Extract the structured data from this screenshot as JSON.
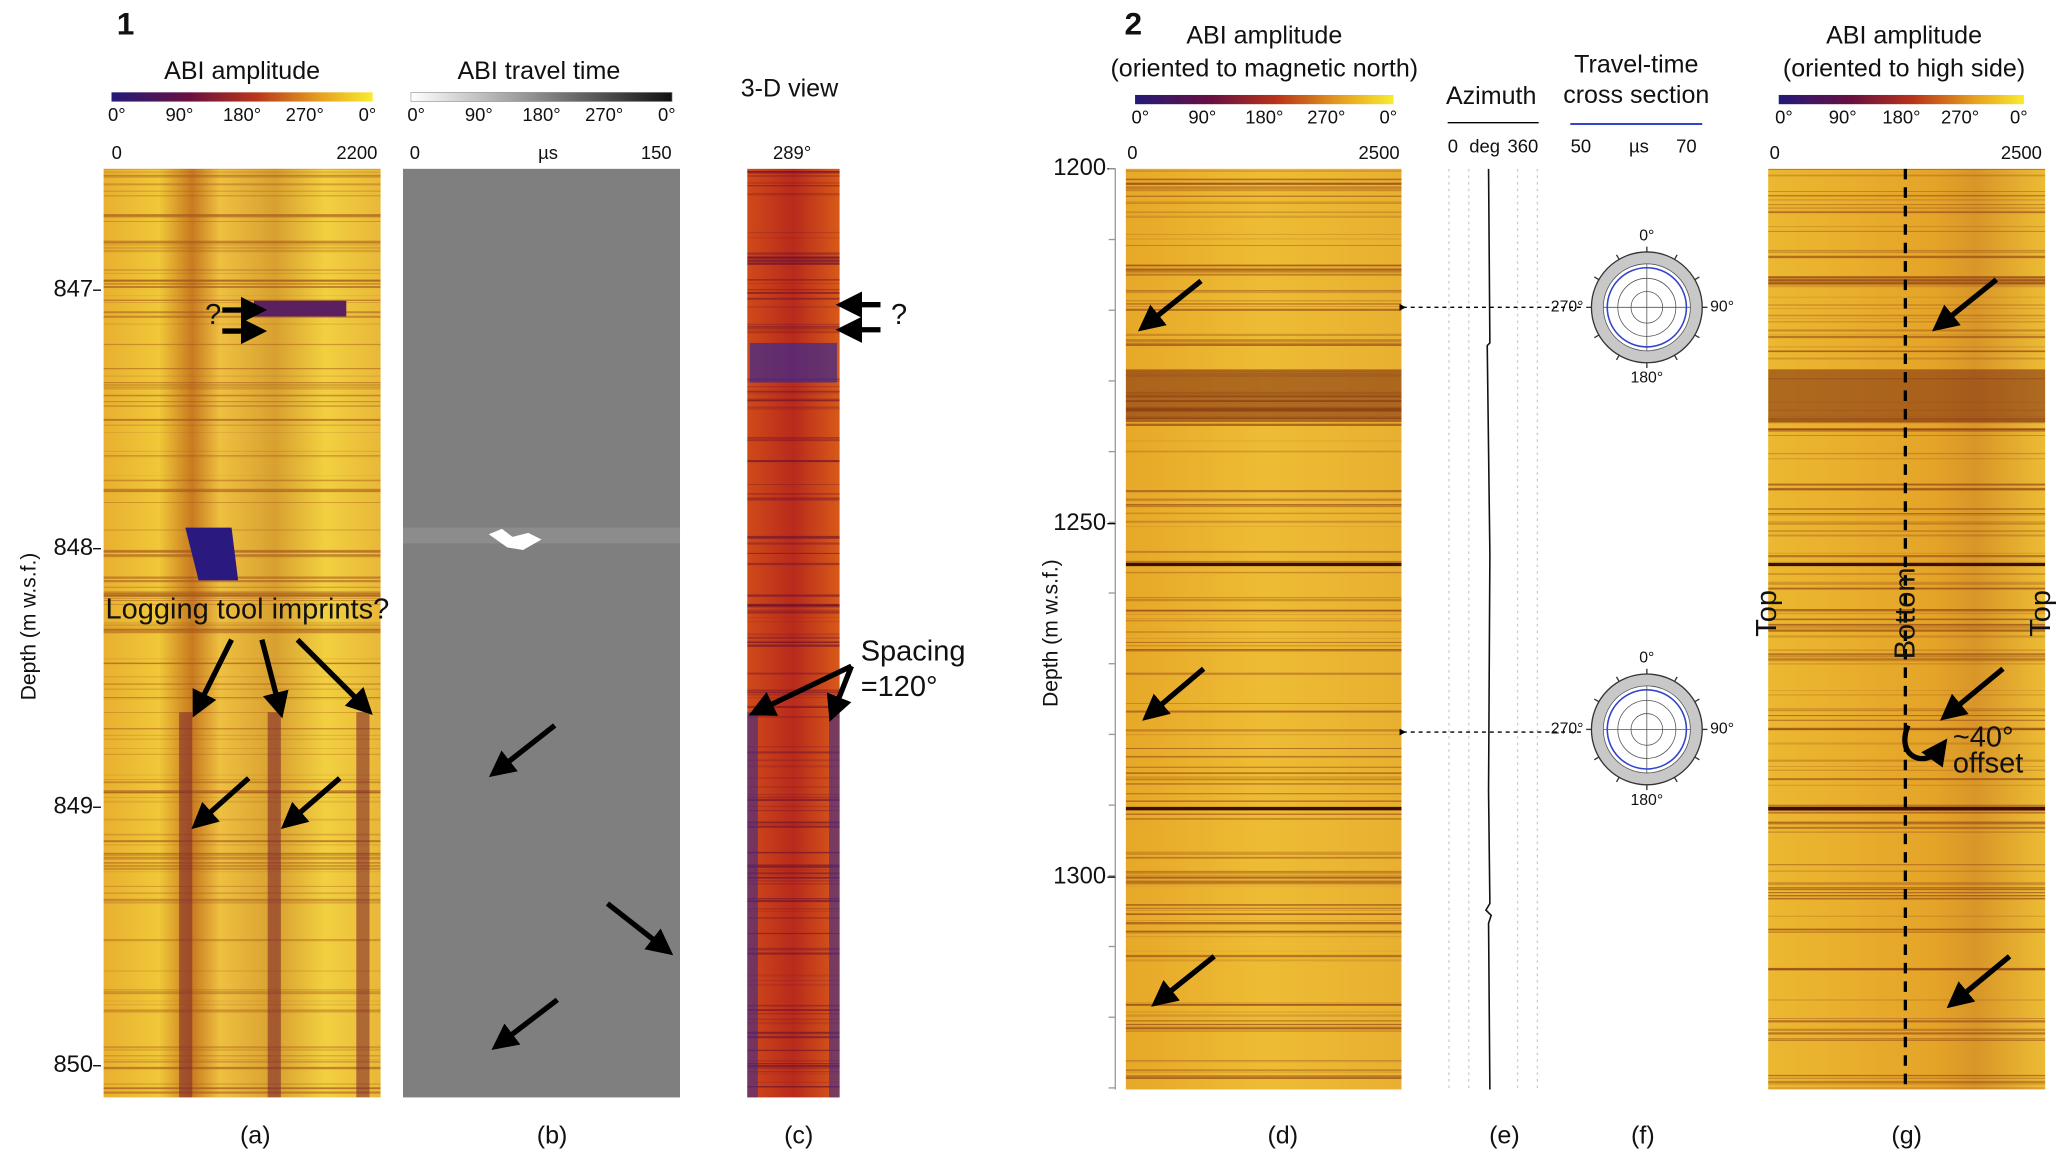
{
  "figure_1": {
    "number": "1",
    "depth_axis_label": "Depth (m w.s.f.)",
    "depth_ticks": [
      "847",
      "848",
      "849",
      "850"
    ],
    "panel_a": {
      "title": "ABI amplitude",
      "colorbar_labels": [
        "0°",
        "90°",
        "180°",
        "270°",
        "0°"
      ],
      "scale_min": "0",
      "scale_max": "2200",
      "caption": "(a)",
      "question": "?",
      "imprints": "Logging tool imprints?"
    },
    "panel_b": {
      "title": "ABI travel time",
      "colorbar_labels": [
        "0°",
        "90°",
        "180°",
        "270°",
        "0°"
      ],
      "scale_min": "0",
      "scale_unit": "µs",
      "scale_max": "150",
      "caption": "(b)"
    },
    "panel_c": {
      "title": "3-D view",
      "azimuth": "289°",
      "caption": "(c)",
      "question": "?",
      "spacing": "Spacing",
      "spacing_value": "=120°"
    }
  },
  "figure_2": {
    "number": "2",
    "depth_axis_label": "Depth (m w.s.f.)",
    "depth_ticks": [
      "1200",
      "1250",
      "1300"
    ],
    "panel_d": {
      "title": "ABI amplitude",
      "subtitle": "(oriented to magnetic north)",
      "colorbar_labels": [
        "0°",
        "90°",
        "180°",
        "270°",
        "0°"
      ],
      "scale_min": "0",
      "scale_max": "2500",
      "caption": "(d)"
    },
    "panel_e": {
      "title": "Azimuth",
      "scale_min": "0",
      "scale_unit": "deg",
      "scale_max": "360",
      "caption": "(e)"
    },
    "panel_f": {
      "title": "Travel-time",
      "subtitle": "cross section",
      "scale_min": "50",
      "scale_unit": "µs",
      "scale_max": "70",
      "polar_labels": [
        "0°",
        "90°",
        "180°",
        "270°"
      ],
      "caption": "(f)"
    },
    "panel_g": {
      "title": "ABI amplitude",
      "subtitle": "(oriented to high side)",
      "colorbar_labels": [
        "0°",
        "90°",
        "180°",
        "270°",
        "0°"
      ],
      "scale_min": "0",
      "scale_max": "2500",
      "side_labels": [
        "Top",
        "Bottom",
        "Top"
      ],
      "offset_value": "~40°",
      "offset_label": "offset",
      "caption": "(g)"
    }
  }
}
